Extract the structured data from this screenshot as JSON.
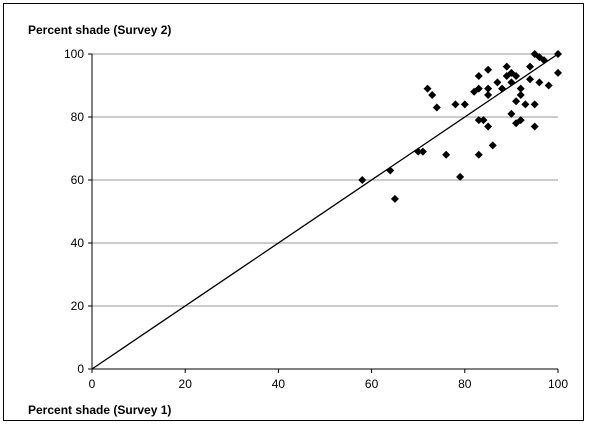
{
  "chart_data": {
    "type": "scatter",
    "ylabel": "Percent shade (Survey 2)",
    "xlabel": "Percent shade (Survey 1)",
    "xlim": [
      0,
      100
    ],
    "ylim": [
      0,
      100
    ],
    "xticks": [
      "0",
      "20",
      "40",
      "60",
      "80",
      "100"
    ],
    "yticks": [
      "0",
      "20",
      "40",
      "60",
      "80",
      "100"
    ],
    "grid": "horizontal",
    "marker": "diamond",
    "reference_line": {
      "from": [
        0,
        0
      ],
      "to": [
        100,
        100
      ]
    },
    "series": [
      {
        "points": [
          [
            58,
            60
          ],
          [
            64,
            63
          ],
          [
            65,
            54
          ],
          [
            70,
            69
          ],
          [
            71,
            69
          ],
          [
            72,
            89
          ],
          [
            73,
            87
          ],
          [
            74,
            83
          ],
          [
            76,
            68
          ],
          [
            78,
            84
          ],
          [
            79,
            61
          ],
          [
            80,
            84
          ],
          [
            82,
            88
          ],
          [
            83,
            89
          ],
          [
            83,
            93
          ],
          [
            83,
            79
          ],
          [
            83,
            68
          ],
          [
            84,
            79
          ],
          [
            85,
            95
          ],
          [
            85,
            89
          ],
          [
            85,
            77
          ],
          [
            85,
            87
          ],
          [
            86,
            71
          ],
          [
            87,
            91
          ],
          [
            88,
            89
          ],
          [
            89,
            96
          ],
          [
            89,
            93
          ],
          [
            90,
            94
          ],
          [
            90,
            81
          ],
          [
            90,
            91
          ],
          [
            91,
            85
          ],
          [
            91,
            78
          ],
          [
            91,
            93
          ],
          [
            92,
            79
          ],
          [
            92,
            89
          ],
          [
            92,
            87
          ],
          [
            93,
            84
          ],
          [
            94,
            96
          ],
          [
            94,
            92
          ],
          [
            95,
            100
          ],
          [
            95,
            84
          ],
          [
            95,
            77
          ],
          [
            96,
            91
          ],
          [
            96,
            99
          ],
          [
            97,
            98
          ],
          [
            98,
            90
          ],
          [
            100,
            100
          ],
          [
            100,
            94
          ]
        ]
      }
    ]
  }
}
